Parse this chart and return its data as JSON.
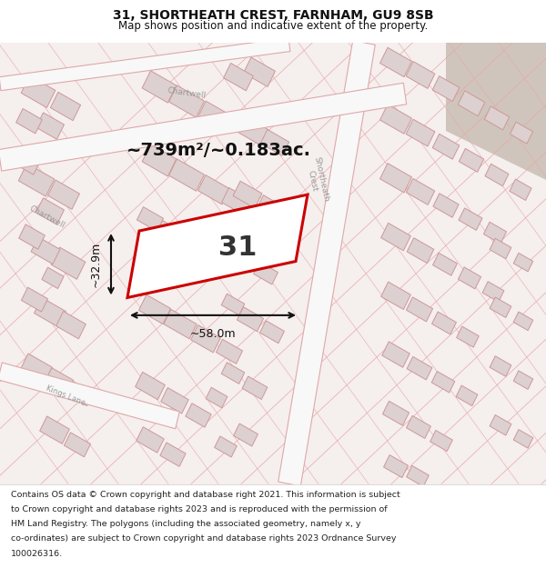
{
  "title_line1": "31, SHORTHEATH CREST, FARNHAM, GU9 8SB",
  "title_line2": "Map shows position and indicative extent of the property.",
  "footer_lines": [
    "Contains OS data © Crown copyright and database right 2021. This information is subject",
    "to Crown copyright and database rights 2023 and is reproduced with the permission of",
    "HM Land Registry. The polygons (including the associated geometry, namely x, y",
    "co-ordinates) are subject to Crown copyright and database rights 2023 Ordnance Survey",
    "100026316."
  ],
  "map_bg_color": "#f5efee",
  "road_color": "#f8f8f8",
  "road_stroke": "#e0a8a8",
  "building_color": "#ddd0d0",
  "building_stroke": "#cc9999",
  "highlight_color": "#cc0000",
  "dim_color": "#111111",
  "area_text": "~739m²/~0.183ac.",
  "plot_number": "31",
  "dim_width": "~58.0m",
  "dim_height": "~32.9m",
  "corner_color": "#cfc5bc",
  "street_label_color": "#999999"
}
